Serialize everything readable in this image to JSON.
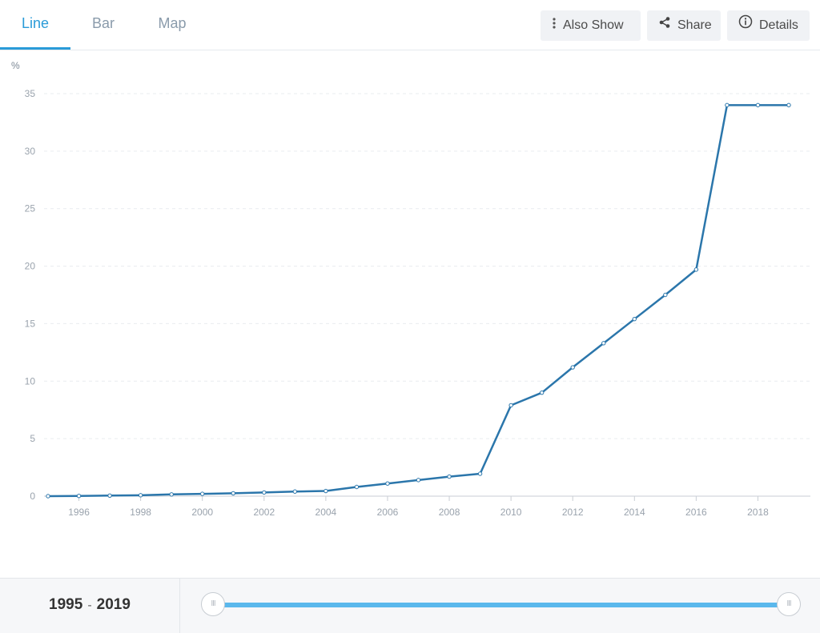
{
  "tabs": [
    {
      "label": "Line",
      "active": true
    },
    {
      "label": "Bar",
      "active": false
    },
    {
      "label": "Map",
      "active": false
    }
  ],
  "toolbar": {
    "also_show": {
      "label": "Also Show",
      "icon": "vertical-dots-icon"
    },
    "share": {
      "label": "Share",
      "icon": "share-icon"
    },
    "details": {
      "label": "Details",
      "icon": "info-icon"
    }
  },
  "colors": {
    "accent": "#2a9bd8",
    "line": "#2b76ab",
    "slider": "#5bb8ec"
  },
  "chart_data": {
    "type": "line",
    "y_unit": "%",
    "ylim": [
      0,
      35
    ],
    "yticks": [
      0,
      5,
      10,
      15,
      20,
      25,
      30,
      35
    ],
    "xlim": [
      1995,
      2019
    ],
    "xticks": [
      1996,
      1998,
      2000,
      2002,
      2004,
      2006,
      2008,
      2010,
      2012,
      2014,
      2016,
      2018
    ],
    "grid": true,
    "series": [
      {
        "x": [
          1995,
          1996,
          1997,
          1998,
          1999,
          2000,
          2001,
          2002,
          2003,
          2004,
          2005,
          2006,
          2007,
          2008,
          2009,
          2010,
          2011,
          2012,
          2013,
          2014,
          2015,
          2016,
          2017,
          2018,
          2019
        ],
        "values": [
          0.0,
          0.02,
          0.05,
          0.08,
          0.15,
          0.2,
          0.25,
          0.32,
          0.4,
          0.45,
          0.8,
          1.1,
          1.4,
          1.7,
          1.95,
          7.9,
          9.0,
          11.2,
          13.3,
          15.4,
          17.5,
          19.7,
          34.0,
          34.0,
          34.0
        ]
      }
    ]
  },
  "range": {
    "start": "1995",
    "separator": "-",
    "end": "2019"
  },
  "slider": {
    "handle_glyph": "III"
  }
}
